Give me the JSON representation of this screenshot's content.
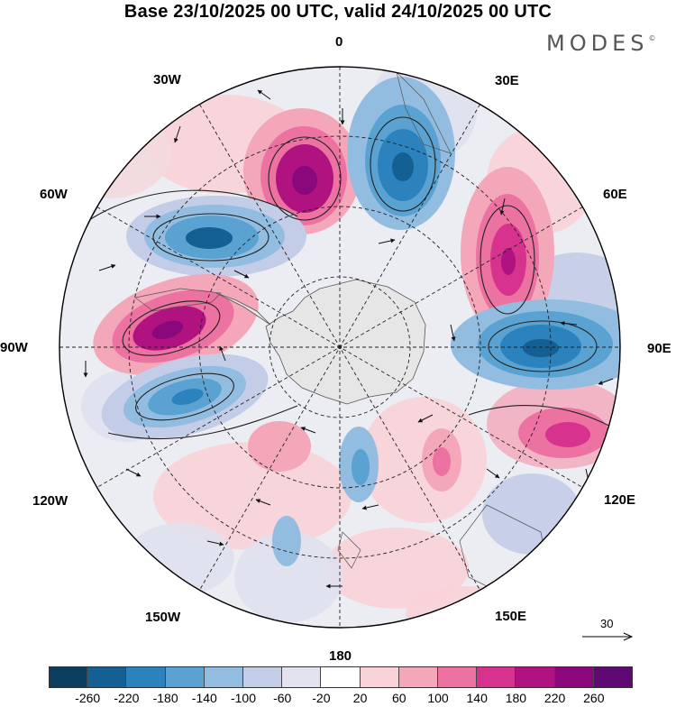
{
  "title": "Base 23/10/2025 00 UTC, valid 24/10/2025 00 UTC",
  "brand": "MODES",
  "brand_mark": "©",
  "longitude_labels": {
    "lon_0": "0",
    "lon_30e": "30E",
    "lon_60e": "60E",
    "lon_90e": "90E",
    "lon_120e": "120E",
    "lon_150e": "150E",
    "lon_180": "180",
    "lon_150w": "150W",
    "lon_120w": "120W",
    "lon_90w": "90W",
    "lon_60w": "60W",
    "lon_30w": "30W"
  },
  "vector_reference": {
    "label": "30",
    "icon": "reference-arrow-icon"
  },
  "colorbar": {
    "labels": [
      "-260",
      "-220",
      "-180",
      "-140",
      "-100",
      "-60",
      "-20",
      "20",
      "60",
      "100",
      "140",
      "180",
      "220",
      "260"
    ],
    "colors": [
      "#0b3d5e",
      "#145f94",
      "#2b82bd",
      "#5aa2d1",
      "#93bde0",
      "#c3cde7",
      "#e3e3f0",
      "#ffffff",
      "#f9d3d8",
      "#f4a7b9",
      "#ec72a1",
      "#d7328d",
      "#b01280",
      "#8a087c",
      "#5e0a72"
    ]
  },
  "field_colors": {
    "antarctica": "#e6e6e6",
    "coast": "#555555",
    "grid": "#222222"
  }
}
